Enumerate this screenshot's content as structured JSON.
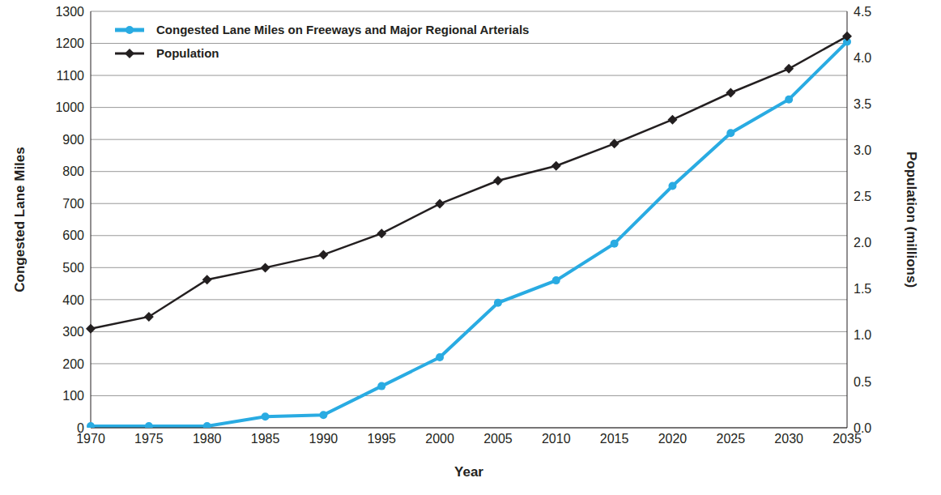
{
  "chart_data": {
    "type": "line",
    "categories": [
      "1970",
      "1975",
      "1980",
      "1985",
      "1990",
      "1995",
      "2000",
      "2005",
      "2010",
      "2015",
      "2020",
      "2025",
      "2030",
      "2035"
    ],
    "x_label": "Year",
    "y_label": "Congested Lane Miles",
    "y2_label": "Population (millions)",
    "series": [
      {
        "name": "Congested Lane Miles on Freeways and Major Regional Arterials",
        "color": "#29abe2",
        "marker": "circle",
        "values": [
          5,
          5,
          5,
          35,
          40,
          130,
          220,
          390,
          460,
          575,
          755,
          920,
          1025,
          1205
        ]
      },
      {
        "name": "Population",
        "color": "#231f20",
        "marker": "diamond",
        "axis": "y2",
        "values": [
          1.07,
          1.2,
          1.6,
          1.73,
          1.87,
          2.1,
          2.42,
          2.67,
          2.83,
          3.07,
          3.33,
          3.62,
          3.88,
          4.23
        ]
      }
    ],
    "ylim": [
      0,
      1300
    ],
    "yticks": [
      0,
      100,
      200,
      300,
      400,
      500,
      600,
      700,
      800,
      900,
      1000,
      1100,
      1200,
      1300
    ],
    "y2lim": [
      0,
      4.5
    ],
    "y2ticks": [
      {
        "value": 0,
        "label": "0.0"
      },
      0.5,
      {
        "value": 1,
        "label": "1.0"
      },
      1.5,
      {
        "value": 2,
        "label": "2.0"
      },
      2.5,
      {
        "value": 3,
        "label": "3.0"
      },
      3.5,
      {
        "value": 4,
        "label": "4.0"
      },
      4.5
    ],
    "grid": true,
    "legend": "upper left"
  }
}
